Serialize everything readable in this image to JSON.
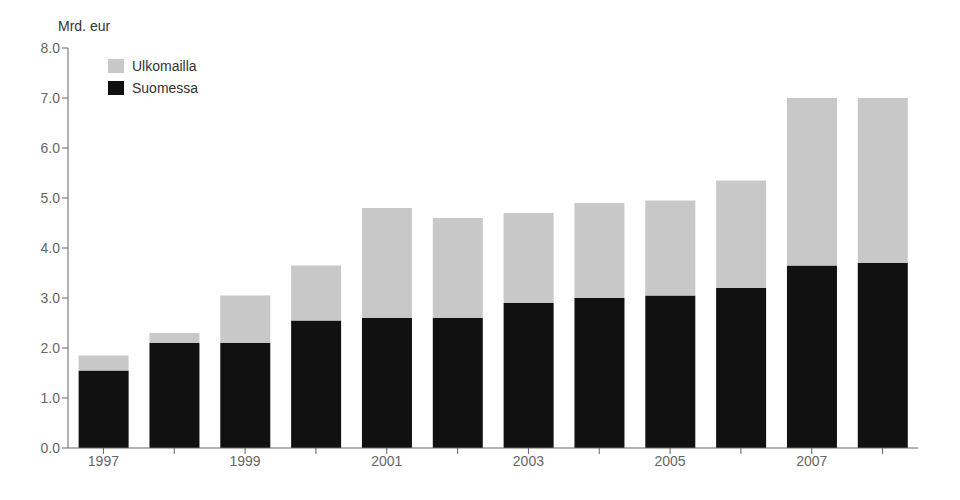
{
  "chart_data": {
    "type": "bar",
    "stacked": true,
    "ylabel": "Mrd. eur",
    "categories": [
      "1997",
      null,
      "1999",
      null,
      "2001",
      null,
      "2003",
      null,
      "2005",
      null,
      "2007",
      null
    ],
    "series": [
      {
        "name": "Suomessa",
        "color": "#111111",
        "values": [
          1.55,
          2.1,
          2.1,
          2.55,
          2.6,
          2.6,
          2.9,
          3.0,
          3.05,
          3.2,
          3.65,
          3.7
        ]
      },
      {
        "name": "Ulkomailla",
        "color": "#c8c8c8",
        "values": [
          0.3,
          0.2,
          0.95,
          1.1,
          2.2,
          2.0,
          1.8,
          1.9,
          1.9,
          2.15,
          3.35,
          3.3
        ]
      }
    ],
    "ylim": [
      0.0,
      8.0
    ],
    "yticks": [
      {
        "value": 0.0,
        "label": "0.0"
      },
      {
        "value": 1.0,
        "label": "1.0"
      },
      {
        "value": 2.0,
        "label": "2.0"
      },
      {
        "value": 3.0,
        "label": "3.0"
      },
      {
        "value": 4.0,
        "label": "4.0"
      },
      {
        "value": 5.0,
        "label": "5.0"
      },
      {
        "value": 6.0,
        "label": "6.0"
      },
      {
        "value": 7.0,
        "label": "7.0"
      },
      {
        "value": 8.0,
        "label": "8.0"
      }
    ],
    "grid": false,
    "legend": "upper left"
  }
}
